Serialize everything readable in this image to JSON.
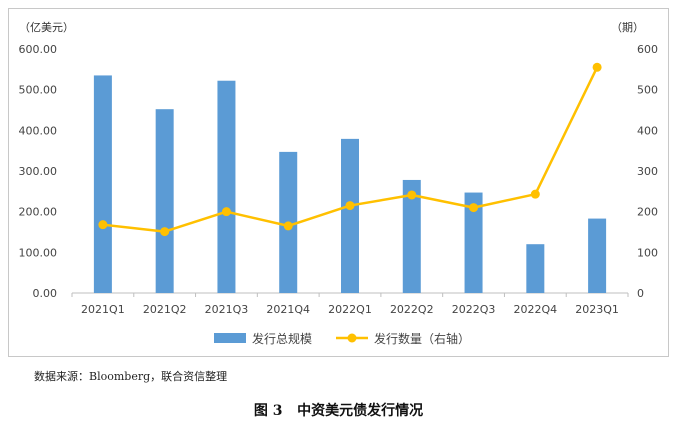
{
  "chart_data": {
    "type": "bar+line",
    "categories": [
      "2021Q1",
      "2021Q2",
      "2021Q3",
      "2021Q4",
      "2022Q1",
      "2022Q2",
      "2022Q3",
      "2022Q4",
      "2023Q1"
    ],
    "series": [
      {
        "name": "发行总规模",
        "type": "bar",
        "axis": "left",
        "color": "#5b9bd5",
        "values": [
          535,
          452,
          522,
          347,
          379,
          278,
          247,
          120,
          183
        ]
      },
      {
        "name": "发行数量（右轴）",
        "type": "line",
        "axis": "right",
        "color": "#ffc000",
        "values": [
          168,
          151,
          200,
          165,
          215,
          241,
          210,
          243,
          555
        ]
      }
    ],
    "left_axis": {
      "unit": "（亿美元）",
      "ylim": [
        0,
        600
      ],
      "tick_labels": [
        "0.00",
        "100.00",
        "200.00",
        "300.00",
        "400.00",
        "500.00",
        "600.00"
      ]
    },
    "right_axis": {
      "unit": "（期）",
      "ylim": [
        0,
        600
      ],
      "tick_labels": [
        "0",
        "100",
        "200",
        "300",
        "400",
        "500",
        "600"
      ]
    },
    "grid": false,
    "legend_position": "bottom"
  },
  "source_note": "数据来源：Bloomberg，联合资信整理",
  "figure_caption": "图 3   中资美元债发行情况"
}
